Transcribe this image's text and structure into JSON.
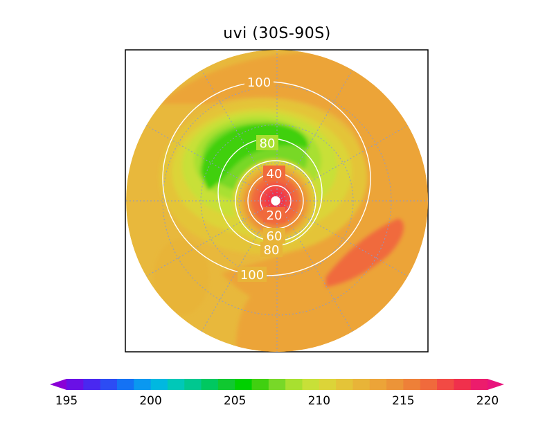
{
  "chart_data": {
    "type": "heatmap",
    "projection": "south-polar-stereographic",
    "title": "uvi (30S-90S)",
    "fill_levels": [
      195,
      196,
      197,
      198,
      199,
      200,
      201,
      202,
      203,
      204,
      205,
      206,
      207,
      208,
      209,
      210,
      211,
      212,
      213,
      214,
      215,
      216,
      217,
      218,
      219,
      220
    ],
    "fill_colors": [
      "#8a00d6",
      "#6a10e6",
      "#4a28f0",
      "#2c4cf4",
      "#1472f4",
      "#0a98f0",
      "#00b8e0",
      "#00c8b8",
      "#00c890",
      "#00c860",
      "#10c830",
      "#00d000",
      "#40d010",
      "#78d828",
      "#a8e030",
      "#c8e038",
      "#dcd438",
      "#e4c438",
      "#e8b438",
      "#eca438",
      "#ec9438",
      "#ee8038",
      "#f06a3c",
      "#f24a44",
      "#f0304c",
      "#ec1c6c",
      "#e8147c"
    ],
    "colorbar_labels": [
      "195",
      "200",
      "205",
      "210",
      "215",
      "220"
    ],
    "contour_labels": [
      "100",
      "80",
      "40",
      "20",
      "60",
      "80",
      "100"
    ]
  }
}
